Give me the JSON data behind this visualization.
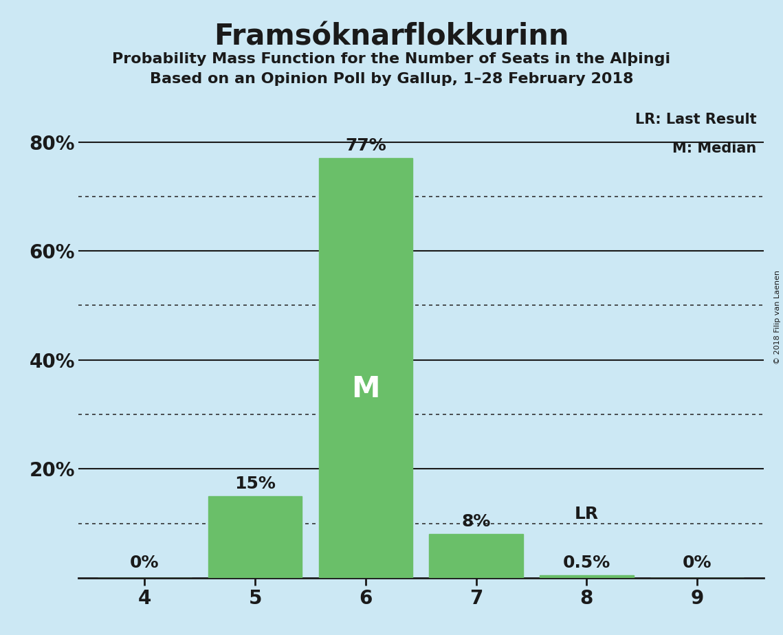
{
  "title": "Framsóknarflokkurinn",
  "subtitle1": "Probability Mass Function for the Number of Seats in the Alþingi",
  "subtitle2": "Based on an Opinion Poll by Gallup, 1–28 February 2018",
  "annotation_lr": "LR: Last Result",
  "annotation_m": "M: Median",
  "copyright": "© 2018 Filip van Laenen",
  "seats": [
    4,
    5,
    6,
    7,
    8,
    9
  ],
  "probabilities": [
    0.0,
    0.15,
    0.77,
    0.08,
    0.005,
    0.0
  ],
  "bar_labels": [
    "0%",
    "15%",
    "77%",
    "8%",
    "0.5%",
    "0%"
  ],
  "bar_color": "#6abf69",
  "median_seat": 6,
  "last_result_seat": 8,
  "median_label": "M",
  "lr_label": "LR",
  "background_color": "#cce8f4",
  "ylim": [
    0,
    0.88
  ],
  "yticks_solid": [
    0.0,
    0.2,
    0.4,
    0.6,
    0.8
  ],
  "yticks_dotted": [
    0.1,
    0.3,
    0.5,
    0.7
  ],
  "ytick_labels_solid": [
    "",
    "20%",
    "40%",
    "60%",
    "80%"
  ],
  "title_fontsize": 30,
  "subtitle_fontsize": 16,
  "tick_fontsize": 20,
  "bar_label_fontsize": 18,
  "median_fontsize": 30,
  "lr_label_fontsize": 18
}
